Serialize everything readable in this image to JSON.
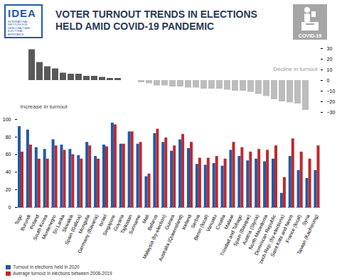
{
  "header": {
    "logo": "IDEA",
    "logo_text": "International Institute for Democracy and Electoral Assistance",
    "icon_label": "COVID-19"
  },
  "chart_data": [
    {
      "type": "bar",
      "title": "VOTER TURNOUT TRENDS IN ELECTIONS HELD AMID COVID-19 PANDEMIC",
      "categories": [
        "Togo",
        "Burundi",
        "Poland",
        "South Korea",
        "Montenegro",
        "Sri Lanka",
        "Slovakia",
        "Spain (Galicia)",
        "Mongolia",
        "Germany (Bavaria)",
        "Israel",
        "Singapore",
        "Guyana",
        "Tajikistan",
        "Suriname",
        "Mali",
        "Belarus",
        "Malaysia (by-election)",
        "Guinea",
        "Australia (Queensland)",
        "Iceland",
        "Serbia",
        "Benin (local)",
        "Vanuatu",
        "Croatia",
        "Malawi",
        "Trinidad and Tobago",
        "Spain (Basque)",
        "Austria (Styria)",
        "North Macedonia",
        "Dominican Republic",
        "Czech Rep. (by-elections)",
        "Saint Kitts and Nevis",
        "France (local)",
        "Syria",
        "Taiwan (Kaohsiung)"
      ],
      "values": [
        29,
        17,
        13,
        11,
        7,
        6,
        6,
        4,
        4,
        3,
        2,
        2,
        0,
        0,
        -2,
        -3,
        -5,
        -5,
        -6,
        -6,
        -7,
        -7,
        -8,
        -8,
        -8,
        -9,
        -10,
        -10,
        -11,
        -13,
        -15,
        -18,
        -20,
        -21,
        -22,
        -28
      ],
      "colors": [
        "#595959",
        "#595959",
        "#595959",
        "#595959",
        "#595959",
        "#595959",
        "#595959",
        "#595959",
        "#595959",
        "#595959",
        "#595959",
        "#595959",
        "#bdbdbd",
        "#bdbdbd",
        "#bdbdbd",
        "#bdbdbd",
        "#bdbdbd",
        "#bdbdbd",
        "#bdbdbd",
        "#bdbdbd",
        "#bdbdbd",
        "#bdbdbd",
        "#bdbdbd",
        "#bdbdbd",
        "#bdbdbd",
        "#bdbdbd",
        "#bdbdbd",
        "#bdbdbd",
        "#bdbdbd",
        "#bdbdbd",
        "#bdbdbd",
        "#bdbdbd",
        "#bdbdbd",
        "#bdbdbd",
        "#bdbdbd",
        "#bdbdbd"
      ],
      "ylim": [
        -30,
        30
      ],
      "yticks": [
        -30,
        -20,
        -10,
        0,
        10,
        20,
        30
      ],
      "tick_labels": "y",
      "annotations": [
        "Increase in turnout",
        "Decline in turnout"
      ]
    },
    {
      "type": "bar",
      "categories": [
        "Togo",
        "Burundi",
        "Poland",
        "South Korea",
        "Montenegro",
        "Sri Lanka",
        "Slovakia",
        "Spain (Galicia)",
        "Mongolia",
        "Germany (Bavaria)",
        "Israel",
        "Singapore",
        "Guyana",
        "Tajikistan",
        "Suriname",
        "Mali",
        "Belarus",
        "Malaysia (by-election)",
        "Guinea",
        "Australia (Queensland)",
        "Iceland",
        "Serbia",
        "Benin (local)",
        "Vanuatu",
        "Croatia",
        "Malawi",
        "Trinidad and Tobago",
        "Spain (Basque)",
        "Austria (Styria)",
        "North Macedonia",
        "Dominican Republic",
        "Czech Rep. (by-elections)",
        "Saint Kitts and Nevis",
        "France (local)",
        "Syria",
        "Taiwan (Kaohsiung)"
      ],
      "series": [
        {
          "name": "Turnout in elections held in 2020",
          "color": "#1f5aa8",
          "values": [
            92,
            88,
            68,
            66,
            77,
            71,
            66,
            59,
            74,
            58,
            71,
            96,
            72,
            86,
            72,
            35,
            84,
            74,
            64,
            77,
            67,
            49,
            48,
            50,
            47,
            65,
            58,
            53,
            55,
            52,
            55,
            16,
            58,
            42,
            33,
            42
          ]
        },
        {
          "name": "Average turnout in elections between 2008-2019",
          "color": "#c0282d",
          "values": [
            63,
            71,
            55,
            55,
            70,
            65,
            60,
            55,
            70,
            55,
            69,
            94,
            72,
            86,
            74,
            38,
            89,
            79,
            70,
            83,
            74,
            56,
            56,
            58,
            55,
            74,
            68,
            63,
            66,
            65,
            70,
            34,
            78,
            63,
            55,
            70
          ]
        }
      ],
      "ylim": [
        0,
        100
      ],
      "yticks": [
        0,
        20,
        40,
        60,
        80,
        100
      ],
      "legend": "bottom-left"
    }
  ]
}
